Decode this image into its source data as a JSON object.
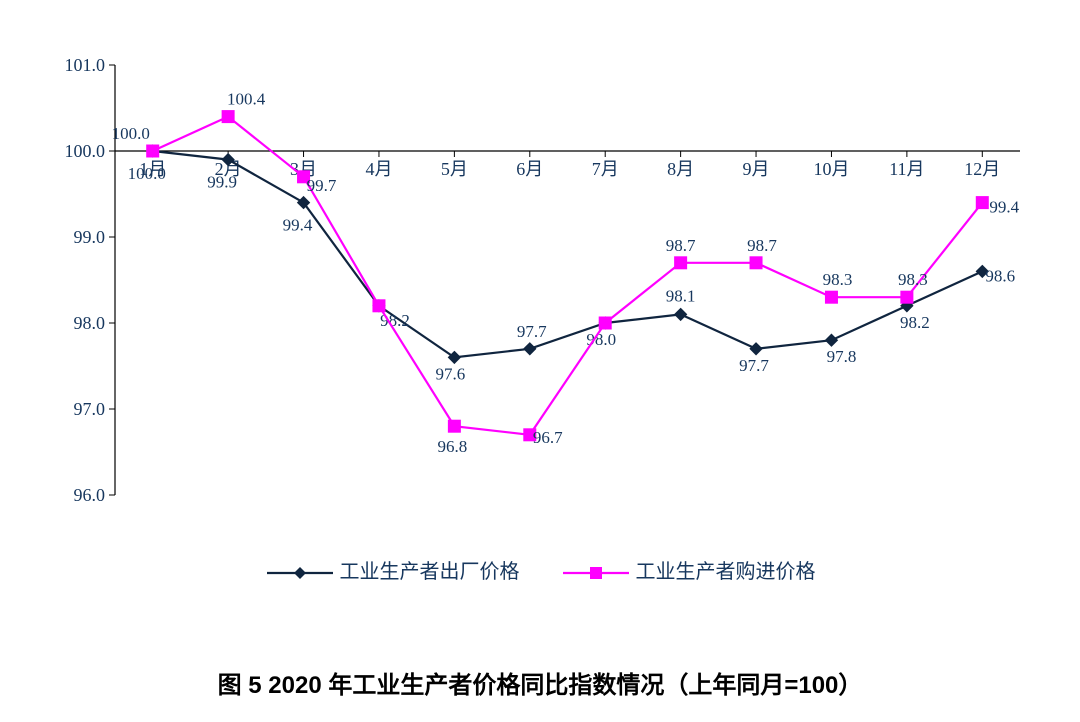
{
  "chart": {
    "type": "line",
    "xlabels": [
      "1月",
      "2月",
      "3月",
      "4月",
      "5月",
      "6月",
      "7月",
      "8月",
      "9月",
      "10月",
      "11月",
      "12月"
    ],
    "ylim": [
      96.0,
      101.0
    ],
    "ytick_step": 1.0,
    "yticks": [
      "96.0",
      "97.0",
      "98.0",
      "99.0",
      "100.0",
      "101.0"
    ],
    "axis_color": "#000000",
    "tick_font_color": "#17375e",
    "tick_font_size": 18,
    "data_label_font_size": 17,
    "data_label_color": "#17375e",
    "line_width": 2.2,
    "marker_size": 6,
    "series": [
      {
        "name": "工业生产者出厂价格",
        "color": "#10253f",
        "marker": "diamond",
        "values": [
          100.0,
          99.9,
          99.4,
          98.2,
          97.6,
          97.7,
          98.0,
          98.1,
          97.7,
          97.8,
          98.2,
          98.6
        ],
        "labels": [
          "100.0",
          "99.9",
          "99.4",
          "98.2",
          "97.6",
          "97.7",
          "98.0",
          "98.1",
          "97.7",
          "97.8",
          "98.2",
          "98.6"
        ],
        "label_dy": [
          28,
          28,
          28,
          20,
          22,
          -12,
          22,
          -13,
          22,
          22,
          22,
          10
        ],
        "label_dx": [
          -6,
          -6,
          -6,
          16,
          -4,
          2,
          -4,
          0,
          -2,
          10,
          8,
          18
        ]
      },
      {
        "name": "工业生产者购进价格",
        "color": "#ff00ff",
        "marker": "square",
        "values": [
          100.0,
          100.4,
          99.7,
          98.2,
          96.8,
          96.7,
          98.0,
          98.7,
          98.7,
          98.3,
          98.3,
          99.4
        ],
        "labels": [
          "100.0",
          "100.4",
          "99.7",
          "",
          "96.8",
          "96.7",
          "",
          "98.7",
          "98.7",
          "98.3",
          "98.3",
          "99.4"
        ],
        "label_dy": [
          -12,
          -12,
          14,
          0,
          26,
          8,
          0,
          -12,
          -12,
          -12,
          -12,
          10
        ],
        "label_dx": [
          -22,
          18,
          18,
          0,
          -2,
          18,
          0,
          0,
          6,
          6,
          6,
          22
        ]
      }
    ]
  },
  "legend": {
    "items": [
      {
        "label": "工业生产者出厂价格",
        "color": "#10253f",
        "marker": "diamond"
      },
      {
        "label": "工业生产者购进价格",
        "color": "#ff00ff",
        "marker": "square"
      }
    ]
  },
  "caption": "图 5   2020 年工业生产者价格同比指数情况（上年同月=100）"
}
